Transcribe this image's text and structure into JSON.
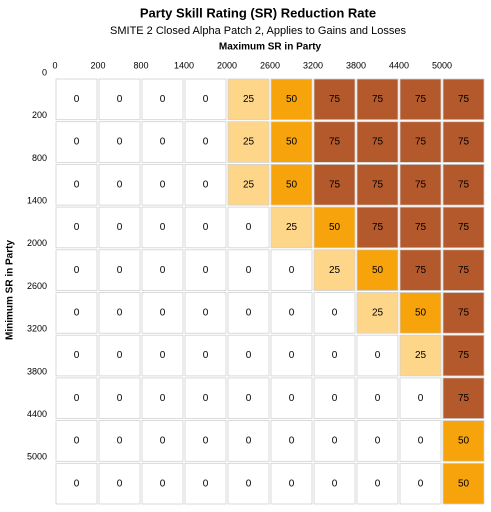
{
  "chart_data": {
    "type": "heatmap",
    "title": "Party Skill Rating (SR) Reduction Rate",
    "subtitle": "SMITE 2 Closed Alpha Patch 2, Applies to Gains and Losses",
    "x_label": "Maximum SR in Party",
    "y_label": "Minimum SR in Party",
    "columns": [
      0,
      200,
      800,
      1400,
      2000,
      2600,
      3200,
      3800,
      4400,
      5000
    ],
    "rows": [
      0,
      200,
      800,
      1400,
      2000,
      2600,
      3200,
      3800,
      4400,
      5000
    ],
    "values": [
      [
        0,
        0,
        0,
        0,
        25,
        50,
        75,
        75,
        75,
        75
      ],
      [
        0,
        0,
        0,
        0,
        25,
        50,
        75,
        75,
        75,
        75
      ],
      [
        0,
        0,
        0,
        0,
        25,
        50,
        75,
        75,
        75,
        75
      ],
      [
        0,
        0,
        0,
        0,
        0,
        25,
        50,
        75,
        75,
        75
      ],
      [
        0,
        0,
        0,
        0,
        0,
        0,
        25,
        50,
        75,
        75
      ],
      [
        0,
        0,
        0,
        0,
        0,
        0,
        0,
        25,
        50,
        75
      ],
      [
        0,
        0,
        0,
        0,
        0,
        0,
        0,
        0,
        25,
        75
      ],
      [
        0,
        0,
        0,
        0,
        0,
        0,
        0,
        0,
        0,
        75
      ],
      [
        0,
        0,
        0,
        0,
        0,
        0,
        0,
        0,
        0,
        50
      ],
      [
        0,
        0,
        0,
        0,
        0,
        0,
        0,
        0,
        0,
        50
      ]
    ],
    "color_scale": [
      {
        "value": 0,
        "color": "#ffffff"
      },
      {
        "value": 25,
        "color": "#fed68a"
      },
      {
        "value": 50,
        "color": "#f7a30c"
      },
      {
        "value": 75,
        "color": "#b3592b"
      }
    ]
  }
}
